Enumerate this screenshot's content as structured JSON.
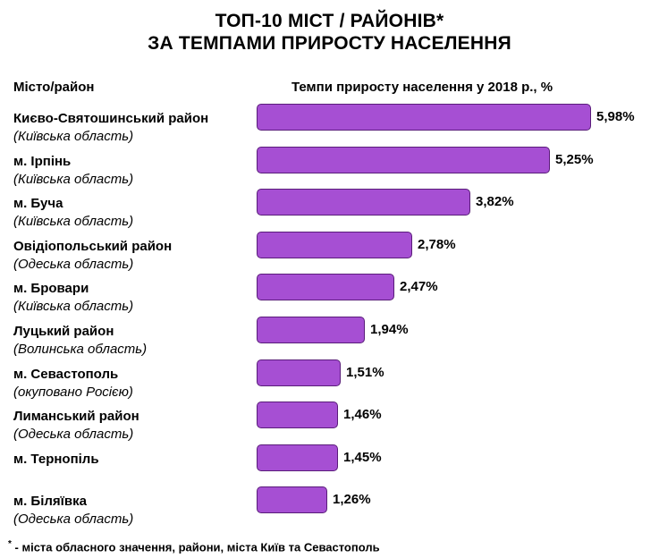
{
  "chart_data": {
    "type": "bar",
    "orientation": "horizontal",
    "title_line1": "ТОП-10 МІСТ / РАЙОНІВ*",
    "title_line2": "ЗА ТЕМПАМИ ПРИРОСТУ НАСЕЛЕННЯ",
    "category_header": "Місто/район",
    "value_header": "Темпи приросту населення у 2018 р., %",
    "xlim": [
      0,
      5.98
    ],
    "rows": [
      {
        "name": "Києво-Святошинський район",
        "region": "(Київська область)",
        "value": 5.98,
        "label": "5,98%"
      },
      {
        "name": "м. Ірпінь",
        "region": "(Київська область)",
        "value": 5.25,
        "label": "5,25%"
      },
      {
        "name": "м. Буча",
        "region": "(Київська область)",
        "value": 3.82,
        "label": "3,82%"
      },
      {
        "name": "Овідіопольський район",
        "region": "(Одеська область)",
        "value": 2.78,
        "label": "2,78%"
      },
      {
        "name": "м. Бровари",
        "region": "(Київська область)",
        "value": 2.47,
        "label": "2,47%"
      },
      {
        "name": "Луцький район",
        "region": "(Волинська область)",
        "value": 1.94,
        "label": "1,94%"
      },
      {
        "name": "м. Севастополь",
        "region": "(окуповано Росією)",
        "value": 1.51,
        "label": "1,51%"
      },
      {
        "name": "Лиманський район",
        "region": "(Одеська область)",
        "value": 1.46,
        "label": "1,46%"
      },
      {
        "name": "м. Тернопіль",
        "region": "",
        "value": 1.45,
        "label": "1,45%"
      },
      {
        "name": "м. Біляївка",
        "region": "(Одеська область)",
        "value": 1.26,
        "label": "1,26%"
      }
    ],
    "bar_color": "#a64fd3",
    "bar_border_color": "#5a1d7a"
  },
  "footnote": {
    "mark": "*",
    "text": " - міста обласного значення, райони, міста Київ та Севастополь"
  }
}
